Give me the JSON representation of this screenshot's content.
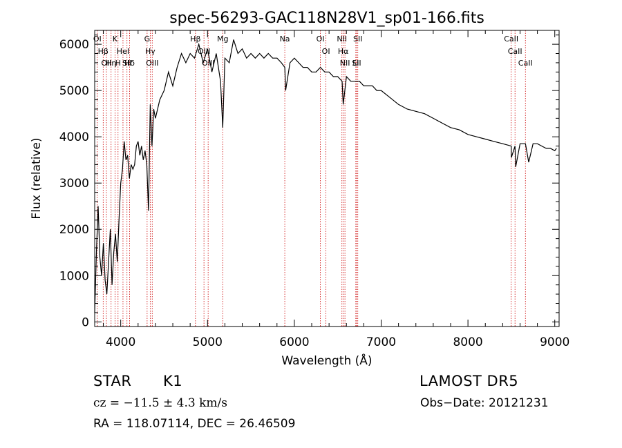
{
  "chart_data": {
    "type": "line",
    "title": "spec-56293-GAC118N28V1_sp01-166.fits",
    "xlabel": "Wavelength (Å)",
    "ylabel": "Flux (relative)",
    "xlim": [
      3700,
      9050
    ],
    "ylim": [
      -100,
      6300
    ],
    "x_ticks": [
      4000,
      5000,
      6000,
      7000,
      8000,
      9000
    ],
    "y_ticks": [
      0,
      1000,
      2000,
      3000,
      4000,
      5000,
      6000
    ],
    "grid": false,
    "series": [
      {
        "x": [
          3700,
          3720,
          3740,
          3760,
          3780,
          3800,
          3820,
          3840,
          3860,
          3880,
          3900,
          3920,
          3940,
          3960,
          3980,
          4000,
          4020,
          4040,
          4060,
          4080,
          4100,
          4120,
          4140,
          4160,
          4180,
          4200,
          4220,
          4240,
          4260,
          4280,
          4300,
          4320,
          4340,
          4360,
          4380,
          4400,
          4450,
          4500,
          4550,
          4600,
          4650,
          4700,
          4750,
          4800,
          4850,
          4900,
          4950,
          5000,
          5050,
          5100,
          5150,
          5175,
          5200,
          5250,
          5300,
          5350,
          5400,
          5450,
          5500,
          5550,
          5600,
          5650,
          5700,
          5750,
          5800,
          5850,
          5890,
          5900,
          5950,
          6000,
          6050,
          6100,
          6150,
          6200,
          6250,
          6300,
          6350,
          6400,
          6450,
          6500,
          6550,
          6563,
          6600,
          6650,
          6700,
          6750,
          6800,
          6850,
          6900,
          6950,
          7000,
          7100,
          7200,
          7300,
          7400,
          7500,
          7600,
          7700,
          7800,
          7900,
          8000,
          8100,
          8200,
          8300,
          8400,
          8498,
          8500,
          8542,
          8550,
          8600,
          8662,
          8700,
          8750,
          8800,
          8850,
          8900,
          8950,
          9000,
          9020
        ],
        "y": [
          200,
          1500,
          2500,
          1400,
          1000,
          1700,
          900,
          600,
          1300,
          2000,
          800,
          1500,
          1900,
          1300,
          2200,
          3000,
          3300,
          3900,
          3500,
          3600,
          3100,
          3400,
          3300,
          3400,
          3800,
          3900,
          3600,
          3800,
          3500,
          3700,
          3400,
          2400,
          4700,
          3800,
          4600,
          4400,
          4800,
          5000,
          5400,
          5100,
          5500,
          5800,
          5600,
          5800,
          5700,
          6000,
          5600,
          5900,
          5400,
          5800,
          5200,
          4200,
          5700,
          5600,
          6100,
          5800,
          5900,
          5700,
          5800,
          5700,
          5800,
          5700,
          5800,
          5700,
          5700,
          5600,
          5500,
          5000,
          5600,
          5700,
          5600,
          5500,
          5500,
          5400,
          5400,
          5500,
          5400,
          5400,
          5300,
          5300,
          5200,
          4700,
          5300,
          5200,
          5200,
          5200,
          5100,
          5100,
          5100,
          5000,
          5000,
          4850,
          4700,
          4600,
          4550,
          4500,
          4400,
          4300,
          4200,
          4150,
          4050,
          4000,
          3950,
          3900,
          3850,
          3800,
          3550,
          3800,
          3350,
          3850,
          3850,
          3450,
          3850,
          3850,
          3800,
          3750,
          3750,
          3700,
          3750
        ]
      }
    ],
    "line_markers": [
      {
        "x": 3730,
        "label": "OI"
      },
      {
        "x": 3798,
        "label": "Hβ"
      },
      {
        "x": 3835,
        "label": "OII"
      },
      {
        "x": 3889,
        "label": "Hη"
      },
      {
        "x": 3934,
        "label": "K"
      },
      {
        "x": 3969,
        "label": "H"
      },
      {
        "x": 4026,
        "label": "HeI"
      },
      {
        "x": 4102,
        "label": "Hδ"
      },
      {
        "x": 4072,
        "label": "SII"
      },
      {
        "x": 4304,
        "label": "G"
      },
      {
        "x": 4340,
        "label": "Hγ"
      },
      {
        "x": 4363,
        "label": "OIII"
      },
      {
        "x": 4861,
        "label": "Hβ"
      },
      {
        "x": 4959,
        "label": "OIII"
      },
      {
        "x": 5007,
        "label": "OIII"
      },
      {
        "x": 5175,
        "label": "Mg"
      },
      {
        "x": 5890,
        "label": "Na"
      },
      {
        "x": 6300,
        "label": "OI"
      },
      {
        "x": 6364,
        "label": "OI"
      },
      {
        "x": 6548,
        "label": "NII"
      },
      {
        "x": 6563,
        "label": "Hα"
      },
      {
        "x": 6583,
        "label": "NII"
      },
      {
        "x": 6708,
        "label": "Li"
      },
      {
        "x": 6717,
        "label": "SII"
      },
      {
        "x": 6731,
        "label": "SII"
      },
      {
        "x": 8498,
        "label": "CaII"
      },
      {
        "x": 8542,
        "label": "CaII"
      },
      {
        "x": 8662,
        "label": "CaII"
      }
    ],
    "marker_color": "#cc0000",
    "line_color": "#000000"
  },
  "info": {
    "class_label": "STAR",
    "subclass": "K1",
    "survey": "LAMOST DR5",
    "cz": "cz = −11.5 ± 4.3 km/s",
    "obs_date": "Obs−Date: 20121231",
    "radec": "RA = 118.07114, DEC =  26.46509"
  }
}
